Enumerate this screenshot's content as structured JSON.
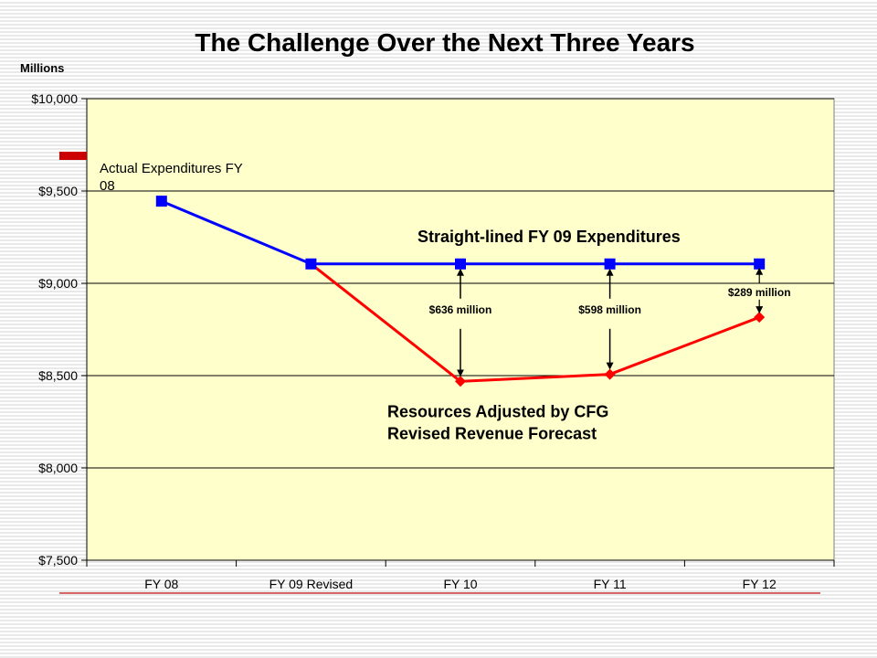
{
  "slide": {
    "title": "The Challenge Over the Next Three Years",
    "unit_label": "Millions",
    "legend_label": "Actual Expenditures FY 08"
  },
  "colors": {
    "plot_background": "#ffffcc",
    "straight_line": "#0000ff",
    "resources": "#ff0000",
    "legend_swatch": "#cc0000",
    "accent_rule": "#cc3333"
  },
  "chart_data": {
    "type": "line",
    "title": "The Challenge Over the Next Three Years",
    "ylabel": "Millions",
    "xlabel": "",
    "categories": [
      "FY 08",
      "FY 09 Revised",
      "FY 10",
      "FY 11",
      "FY 12"
    ],
    "ylim": [
      7500,
      10000
    ],
    "yticks": [
      7500,
      8000,
      8500,
      9000,
      9500,
      10000
    ],
    "ytick_labels": [
      "$7,500",
      "$8,000",
      "$8,500",
      "$9,000",
      "$9,500",
      "$10,000"
    ],
    "grid": true,
    "series": [
      {
        "name": "Straight-lined FY 09 Expenditures",
        "color": "#0000ff",
        "marker": "square",
        "values": [
          9445,
          9105,
          9105,
          9105,
          9105
        ]
      },
      {
        "name_lines": [
          "Resources Adjusted by CFG",
          "Revised Revenue Forecast"
        ],
        "color": "#ff0000",
        "marker": "diamond",
        "values": [
          null,
          9105,
          8469,
          8507,
          8816
        ]
      }
    ],
    "annotations": [
      {
        "label": "$636 million",
        "category_index": 2
      },
      {
        "label": "$598 million",
        "category_index": 3
      },
      {
        "label": "$289 million",
        "category_index": 4
      }
    ]
  }
}
